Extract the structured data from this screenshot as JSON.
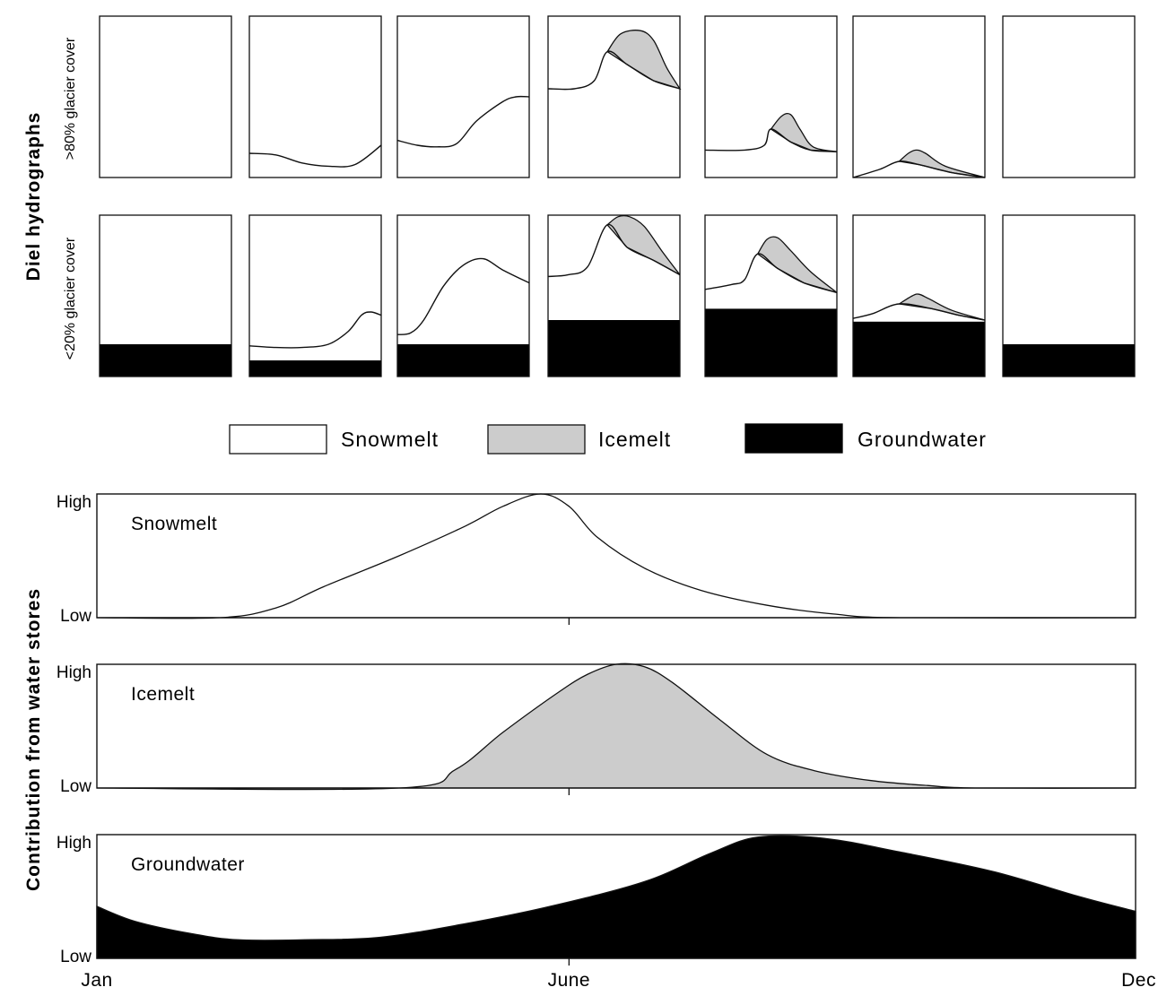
{
  "figure": {
    "y_label_top": "Diel hydrographs",
    "y_label_bottom": "Contribution from water stores"
  },
  "legend": [
    {
      "label": "Snowmelt",
      "fill": "#ffffff"
    },
    {
      "label": "Icemelt",
      "fill": "#cccccc"
    },
    {
      "label": "Groundwater",
      "fill": "#000000"
    }
  ],
  "colors": {
    "snowmelt": "#ffffff",
    "icemelt": "#cccccc",
    "groundwater": "#000000",
    "outline": "#111111"
  },
  "chart_data": [
    {
      "type": "area",
      "chart": "diel-hydrographs",
      "rows": [
        {
          "label": ">80% glacier cover",
          "panels": [
            {
              "snow": [],
              "ice_peak": [],
              "groundwater": 0
            },
            {
              "snow": [
                [
                  0,
                  0.15
                ],
                [
                  0.2,
                  0.14
                ],
                [
                  0.4,
                  0.09
                ],
                [
                  0.6,
                  0.07
                ],
                [
                  0.8,
                  0.08
                ],
                [
                  1,
                  0.2
                ]
              ],
              "ice_peak": [],
              "groundwater": 0
            },
            {
              "snow": [
                [
                  0,
                  0.23
                ],
                [
                  0.15,
                  0.2
                ],
                [
                  0.3,
                  0.19
                ],
                [
                  0.45,
                  0.21
                ],
                [
                  0.6,
                  0.35
                ],
                [
                  0.8,
                  0.47
                ],
                [
                  0.9,
                  0.5
                ],
                [
                  1,
                  0.5
                ]
              ],
              "ice_peak": [],
              "groundwater": 0
            },
            {
              "snow": [
                [
                  0,
                  0.55
                ],
                [
                  0.2,
                  0.55
                ],
                [
                  0.35,
                  0.6
                ],
                [
                  0.45,
                  0.78
                ],
                [
                  0.6,
                  0.7
                ],
                [
                  0.8,
                  0.6
                ],
                [
                  1,
                  0.55
                ]
              ],
              "ice_peak": [
                [
                  0.45,
                  0.78
                ],
                [
                  0.55,
                  0.89
                ],
                [
                  0.7,
                  0.91
                ],
                [
                  0.8,
                  0.85
                ],
                [
                  0.9,
                  0.68
                ],
                [
                  1,
                  0.55
                ]
              ],
              "groundwater": 0
            },
            {
              "snow": [
                [
                  0,
                  0.17
                ],
                [
                  0.3,
                  0.17
                ],
                [
                  0.45,
                  0.2
                ],
                [
                  0.5,
                  0.3
                ],
                [
                  0.65,
                  0.22
                ],
                [
                  0.8,
                  0.17
                ],
                [
                  1,
                  0.16
                ]
              ],
              "ice_peak": [
                [
                  0.5,
                  0.3
                ],
                [
                  0.58,
                  0.38
                ],
                [
                  0.65,
                  0.39
                ],
                [
                  0.72,
                  0.3
                ],
                [
                  0.82,
                  0.19
                ],
                [
                  1,
                  0.16
                ]
              ],
              "groundwater": 0
            },
            {
              "snow": [
                [
                  0,
                  0
                ],
                [
                  0.2,
                  0.05
                ],
                [
                  0.35,
                  0.1
                ],
                [
                  0.5,
                  0.08
                ],
                [
                  0.75,
                  0.03
                ],
                [
                  1,
                  0
                ]
              ],
              "ice_peak": [
                [
                  0.35,
                  0.1
                ],
                [
                  0.42,
                  0.15
                ],
                [
                  0.48,
                  0.17
                ],
                [
                  0.55,
                  0.15
                ],
                [
                  0.7,
                  0.07
                ],
                [
                  1,
                  0
                ]
              ],
              "groundwater": 0
            },
            {
              "snow": [],
              "ice_peak": [],
              "groundwater": 0
            }
          ]
        },
        {
          "label": "<20% glacier cover",
          "panels": [
            {
              "snow": [],
              "ice_peak": [],
              "groundwater": 0.2
            },
            {
              "snow": [
                [
                  0,
                  0.19
                ],
                [
                  0.2,
                  0.18
                ],
                [
                  0.4,
                  0.18
                ],
                [
                  0.6,
                  0.2
                ],
                [
                  0.75,
                  0.28
                ],
                [
                  0.85,
                  0.38
                ],
                [
                  0.92,
                  0.4
                ],
                [
                  1,
                  0.38
                ]
              ],
              "ice_peak": [],
              "groundwater": 0.1
            },
            {
              "snow": [
                [
                  0,
                  0.26
                ],
                [
                  0.1,
                  0.27
                ],
                [
                  0.2,
                  0.35
                ],
                [
                  0.35,
                  0.56
                ],
                [
                  0.5,
                  0.69
                ],
                [
                  0.65,
                  0.73
                ],
                [
                  0.8,
                  0.66
                ],
                [
                  1,
                  0.58
                ]
              ],
              "ice_peak": [],
              "groundwater": 0.2
            },
            {
              "snow": [
                [
                  0,
                  0.62
                ],
                [
                  0.15,
                  0.63
                ],
                [
                  0.3,
                  0.68
                ],
                [
                  0.45,
                  0.94
                ],
                [
                  0.6,
                  0.8
                ],
                [
                  0.8,
                  0.72
                ],
                [
                  1,
                  0.63
                ]
              ],
              "ice_peak": [
                [
                  0.45,
                  0.94
                ],
                [
                  0.53,
                  0.99
                ],
                [
                  0.62,
                  0.99
                ],
                [
                  0.73,
                  0.93
                ],
                [
                  0.87,
                  0.77
                ],
                [
                  1,
                  0.63
                ]
              ],
              "groundwater": 0.35
            },
            {
              "snow": [
                [
                  0,
                  0.54
                ],
                [
                  0.2,
                  0.57
                ],
                [
                  0.3,
                  0.6
                ],
                [
                  0.4,
                  0.76
                ],
                [
                  0.55,
                  0.67
                ],
                [
                  0.75,
                  0.58
                ],
                [
                  1,
                  0.52
                ]
              ],
              "ice_peak": [
                [
                  0.4,
                  0.76
                ],
                [
                  0.47,
                  0.85
                ],
                [
                  0.55,
                  0.86
                ],
                [
                  0.65,
                  0.78
                ],
                [
                  0.8,
                  0.65
                ],
                [
                  1,
                  0.52
                ]
              ],
              "groundwater": 0.42
            },
            {
              "snow": [
                [
                  0,
                  0.36
                ],
                [
                  0.15,
                  0.39
                ],
                [
                  0.35,
                  0.45
                ],
                [
                  0.6,
                  0.42
                ],
                [
                  0.8,
                  0.38
                ],
                [
                  1,
                  0.35
                ]
              ],
              "ice_peak": [
                [
                  0.35,
                  0.45
                ],
                [
                  0.45,
                  0.5
                ],
                [
                  0.5,
                  0.51
                ],
                [
                  0.58,
                  0.48
                ],
                [
                  0.75,
                  0.41
                ],
                [
                  1,
                  0.35
                ]
              ],
              "groundwater": 0.34
            },
            {
              "snow": [],
              "ice_peak": [],
              "groundwater": 0.2
            }
          ]
        }
      ]
    },
    {
      "type": "area",
      "chart": "contribution-from-water-stores",
      "x_ticks": [
        "Jan",
        "June",
        "Dec"
      ],
      "x_tick_positions": [
        1,
        6,
        12
      ],
      "y_ticks": [
        "Low",
        "High"
      ],
      "xlim": [
        1,
        12
      ],
      "ylim": [
        0,
        1
      ],
      "series": [
        {
          "name": "Snowmelt",
          "fill": "#ffffff",
          "x": [
            1,
            2.3,
            2.9,
            3.4,
            4.2,
            4.9,
            5.3,
            5.7,
            6.0,
            6.3,
            6.8,
            7.4,
            8.1,
            8.8,
            9.5,
            12
          ],
          "y": [
            0,
            0,
            0.08,
            0.25,
            0.5,
            0.74,
            0.9,
            1.0,
            0.9,
            0.65,
            0.4,
            0.22,
            0.1,
            0.03,
            0,
            0
          ]
        },
        {
          "name": "Icemelt",
          "fill": "#cccccc",
          "x": [
            1,
            4.2,
            4.8,
            5.3,
            5.9,
            6.2,
            6.5,
            6.8,
            7.1,
            7.6,
            8.1,
            8.6,
            9.2,
            9.8,
            10.3,
            12
          ],
          "y": [
            0,
            0,
            0.15,
            0.45,
            0.78,
            0.92,
            1.0,
            0.98,
            0.85,
            0.55,
            0.27,
            0.14,
            0.06,
            0.02,
            0,
            0
          ]
        },
        {
          "name": "Groundwater",
          "fill": "#000000",
          "x": [
            1,
            1.4,
            2.0,
            2.5,
            3.2,
            4.0,
            4.9,
            5.8,
            6.8,
            7.5,
            8.0,
            8.7,
            9.5,
            10.5,
            11.4,
            12
          ],
          "y": [
            0.42,
            0.3,
            0.2,
            0.15,
            0.15,
            0.17,
            0.28,
            0.42,
            0.62,
            0.85,
            0.98,
            0.97,
            0.86,
            0.7,
            0.5,
            0.38
          ]
        }
      ]
    }
  ]
}
